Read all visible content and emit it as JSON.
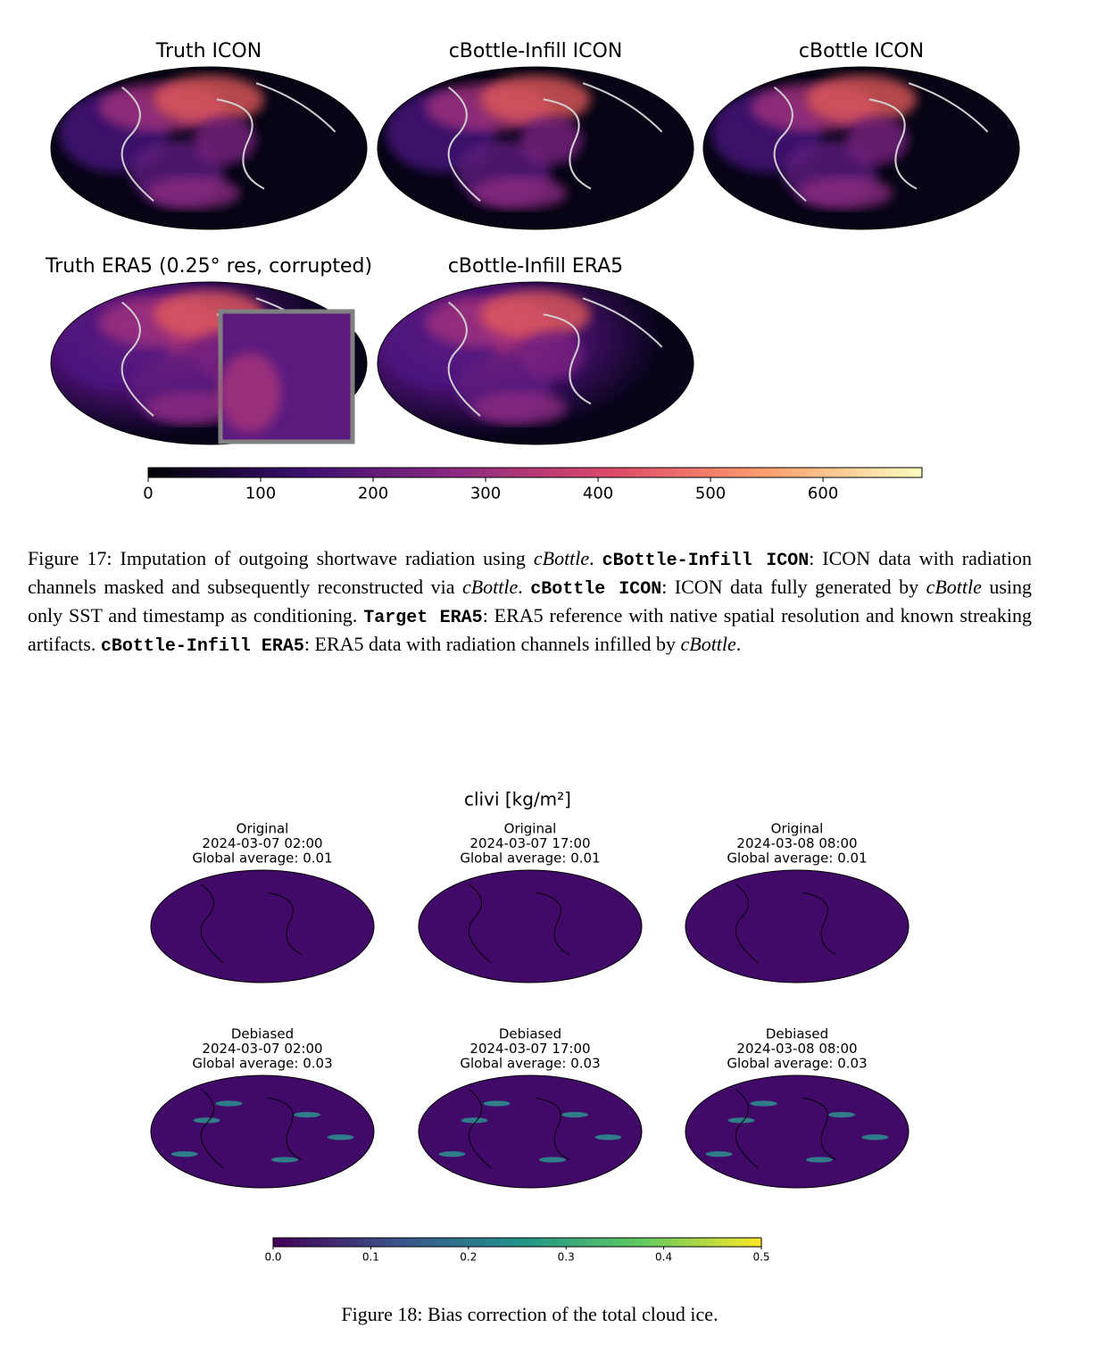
{
  "figure17": {
    "panels": [
      {
        "title": "Truth ICON"
      },
      {
        "title": "cBottle-Infill ICON"
      },
      {
        "title": "cBottle ICON"
      },
      {
        "title": "Truth ERA5 (0.25° res, corrupted)"
      },
      {
        "title": "cBottle-Infill ERA5"
      }
    ],
    "colorbar": {
      "cmap": "magma",
      "lim": [
        0,
        688
      ],
      "ticks": [
        0,
        100,
        200,
        300,
        400,
        500,
        600
      ]
    },
    "caption": [
      {
        "text": "Figure 17: Imputation of outgoing shortwave radiation using ",
        "style": "plain"
      },
      {
        "text": "cBottle",
        "style": "italic"
      },
      {
        "text": ". ",
        "style": "plain"
      },
      {
        "text": "cBottle-Infill ICON",
        "style": "mono"
      },
      {
        "text": ": ICON data with radiation channels masked and subsequently reconstructed via ",
        "style": "plain"
      },
      {
        "text": "cBottle",
        "style": "italic"
      },
      {
        "text": ". ",
        "style": "plain"
      },
      {
        "text": "cBottle ICON",
        "style": "mono"
      },
      {
        "text": ": ICON data fully generated by ",
        "style": "plain"
      },
      {
        "text": "cBottle",
        "style": "italic"
      },
      {
        "text": " using only SST and timestamp as conditioning. ",
        "style": "plain"
      },
      {
        "text": "Target ERA5",
        "style": "mono"
      },
      {
        "text": ": ERA5 reference with native spatial resolution and known streaking artifacts. ",
        "style": "plain"
      },
      {
        "text": "cBottle-Infill ERA5",
        "style": "mono"
      },
      {
        "text": ": ERA5 data with radiation channels infilled by ",
        "style": "plain"
      },
      {
        "text": "cBottle",
        "style": "italic"
      },
      {
        "text": ".",
        "style": "plain"
      }
    ]
  },
  "figure18": {
    "title": "clivi [kg/m²]",
    "panels": [
      {
        "lines": [
          "Original",
          "2024-03-07 02:00",
          "Global average: 0.01"
        ]
      },
      {
        "lines": [
          "Original",
          "2024-03-07 17:00",
          "Global average: 0.01"
        ]
      },
      {
        "lines": [
          "Original",
          "2024-03-08 08:00",
          "Global average: 0.01"
        ]
      },
      {
        "lines": [
          "Debiased",
          "2024-03-07 02:00",
          "Global average: 0.03"
        ]
      },
      {
        "lines": [
          "Debiased",
          "2024-03-07 17:00",
          "Global average: 0.03"
        ]
      },
      {
        "lines": [
          "Debiased",
          "2024-03-08 08:00",
          "Global average: 0.03"
        ]
      }
    ],
    "colorbar": {
      "cmap": "viridis",
      "lim": [
        0,
        0.5
      ],
      "ticks": [
        {
          "value": 0,
          "label": "0.0"
        },
        0.1,
        0.2,
        0.3,
        0.4,
        0.5
      ]
    },
    "caption": "Figure 18: Bias correction of the total cloud ice."
  }
}
